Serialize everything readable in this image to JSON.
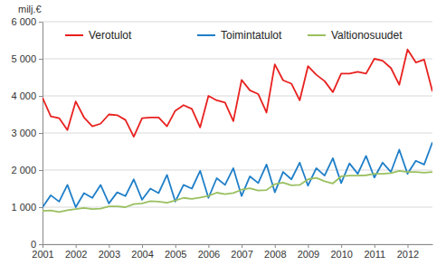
{
  "chart_data": {
    "type": "line",
    "y_label": "milj.€",
    "categories": [
      "2001",
      null,
      null,
      null,
      "2002",
      null,
      null,
      null,
      "2003",
      null,
      null,
      null,
      "2004",
      null,
      null,
      null,
      "2005",
      null,
      null,
      null,
      "2006",
      null,
      null,
      null,
      "2007",
      null,
      null,
      null,
      "2008",
      null,
      null,
      null,
      "2009",
      null,
      null,
      null,
      "2010",
      null,
      null,
      null,
      "2011",
      null,
      null,
      null,
      "2012",
      null,
      null,
      null
    ],
    "series": [
      {
        "name": "Verotulot",
        "color": "#e8211f",
        "values": [
          3950,
          3450,
          3400,
          3080,
          3850,
          3420,
          3180,
          3250,
          3500,
          3480,
          3350,
          2900,
          3400,
          3420,
          3420,
          3180,
          3600,
          3750,
          3650,
          3150,
          4000,
          3880,
          3820,
          3320,
          4430,
          4150,
          4050,
          3550,
          4850,
          4420,
          4330,
          3880,
          4800,
          4570,
          4400,
          4100,
          4600,
          4600,
          4650,
          4600,
          5000,
          4950,
          4750,
          4300,
          5250,
          4900,
          4980,
          4120
        ]
      },
      {
        "name": "Toimintatulot",
        "color": "#1f7fc8",
        "values": [
          1000,
          1320,
          1150,
          1600,
          1000,
          1380,
          1250,
          1600,
          1100,
          1400,
          1300,
          1750,
          1200,
          1500,
          1380,
          1870,
          1150,
          1600,
          1500,
          1980,
          1250,
          1780,
          1600,
          2050,
          1300,
          1830,
          1650,
          2150,
          1400,
          1950,
          1750,
          2200,
          1580,
          2050,
          1850,
          2320,
          1650,
          2180,
          1900,
          2380,
          1800,
          2200,
          1950,
          2550,
          1900,
          2250,
          2150,
          2750
        ]
      },
      {
        "name": "Valtionosuudet",
        "color": "#9ac060",
        "values": [
          900,
          910,
          870,
          920,
          950,
          980,
          950,
          960,
          1020,
          1020,
          1000,
          1080,
          1100,
          1160,
          1150,
          1120,
          1180,
          1250,
          1220,
          1260,
          1300,
          1390,
          1350,
          1380,
          1470,
          1510,
          1450,
          1460,
          1620,
          1660,
          1590,
          1600,
          1750,
          1790,
          1700,
          1640,
          1830,
          1850,
          1850,
          1860,
          1900,
          1900,
          1920,
          1980,
          1950,
          1950,
          1930,
          1950
        ]
      }
    ],
    "ylim": [
      0,
      6000
    ],
    "yticks": [
      0,
      {
        "value": 1000,
        "label": "1 000"
      },
      {
        "value": 2000,
        "label": "2 000"
      },
      {
        "value": 3000,
        "label": "3 000"
      },
      {
        "value": 4000,
        "label": "4 000"
      },
      {
        "value": 5000,
        "label": "5 000"
      },
      {
        "value": 6000,
        "label": "6 000"
      }
    ],
    "grid": true,
    "legend": "top"
  }
}
